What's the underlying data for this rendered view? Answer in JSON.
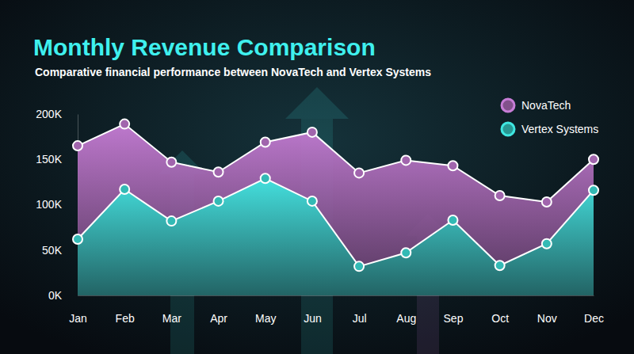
{
  "chart_data": {
    "type": "area",
    "title": "Monthly Revenue Comparison",
    "subtitle": "Comparative financial performance between NovaTech and Vertex Systems",
    "categories": [
      "Jan",
      "Feb",
      "Mar",
      "Apr",
      "May",
      "Jun",
      "Jul",
      "Aug",
      "Sep",
      "Oct",
      "Nov",
      "Dec"
    ],
    "series": [
      {
        "name": "NovaTech",
        "color": "#c77dd6",
        "marker": "circle",
        "values": [
          165000,
          189000,
          147000,
          136000,
          169000,
          180000,
          135000,
          149000,
          143000,
          110000,
          103000,
          150000
        ]
      },
      {
        "name": "Vertex Systems",
        "color": "#3fe6e0",
        "marker": "circle",
        "values": [
          62000,
          117000,
          82000,
          104000,
          129000,
          104000,
          32000,
          47000,
          83000,
          33000,
          57000,
          116000
        ]
      }
    ],
    "ylim": [
      0,
      200000
    ],
    "yticks": [
      {
        "value": 0,
        "label": "0K"
      },
      {
        "value": 50000,
        "label": "50K"
      },
      {
        "value": 100000,
        "label": "100K"
      },
      {
        "value": 150000,
        "label": "150K"
      },
      {
        "value": 200000,
        "label": "200K"
      }
    ],
    "grid": false,
    "legend": "top-right"
  }
}
